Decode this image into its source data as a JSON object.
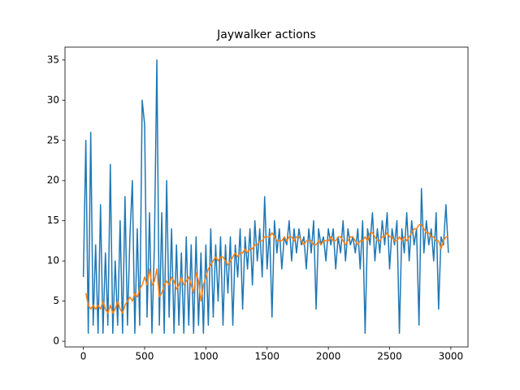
{
  "chart_data": {
    "type": "line",
    "title": "Jaywalker actions",
    "x": [
      0,
      20,
      40,
      60,
      80,
      100,
      120,
      140,
      160,
      180,
      200,
      220,
      240,
      260,
      280,
      300,
      320,
      340,
      360,
      380,
      400,
      420,
      440,
      460,
      480,
      500,
      520,
      540,
      560,
      580,
      600,
      620,
      640,
      660,
      680,
      700,
      720,
      740,
      760,
      780,
      800,
      820,
      840,
      860,
      880,
      900,
      920,
      940,
      960,
      980,
      1000,
      1020,
      1040,
      1060,
      1080,
      1100,
      1120,
      1140,
      1160,
      1180,
      1200,
      1220,
      1240,
      1260,
      1280,
      1300,
      1320,
      1340,
      1360,
      1380,
      1400,
      1420,
      1440,
      1460,
      1480,
      1500,
      1520,
      1540,
      1560,
      1580,
      1600,
      1620,
      1640,
      1660,
      1680,
      1700,
      1720,
      1740,
      1760,
      1780,
      1800,
      1820,
      1840,
      1860,
      1880,
      1900,
      1920,
      1940,
      1960,
      1980,
      2000,
      2020,
      2040,
      2060,
      2080,
      2100,
      2120,
      2140,
      2160,
      2180,
      2200,
      2220,
      2240,
      2260,
      2280,
      2300,
      2320,
      2340,
      2360,
      2380,
      2400,
      2420,
      2440,
      2460,
      2480,
      2500,
      2520,
      2540,
      2560,
      2580,
      2600,
      2620,
      2640,
      2660,
      2680,
      2700,
      2720,
      2740,
      2760,
      2780,
      2800,
      2820,
      2840,
      2860,
      2880,
      2900,
      2920,
      2940,
      2960,
      2980
    ],
    "series": [
      {
        "color": "#1f77b4",
        "values": [
          8,
          25,
          1,
          26,
          2,
          12,
          1,
          17,
          1,
          11,
          2,
          22,
          1,
          10,
          2,
          15,
          1,
          18,
          2,
          13,
          20,
          1,
          14,
          2,
          30,
          27,
          3,
          16,
          1,
          12,
          35,
          2,
          16,
          1,
          20,
          3,
          14,
          1,
          12,
          2,
          11,
          1,
          13,
          2,
          12,
          1,
          13,
          2,
          11,
          1,
          12,
          2,
          14,
          3,
          12,
          5,
          13,
          2,
          12,
          6,
          13,
          2,
          12,
          8,
          14,
          4,
          13,
          9,
          14,
          7,
          15,
          10,
          14,
          8,
          18,
          9,
          14,
          3,
          15,
          11,
          14,
          9,
          13,
          12,
          15,
          10,
          14,
          11,
          14,
          12,
          13,
          9,
          14,
          11,
          15,
          4,
          14,
          12,
          13,
          10,
          14,
          12,
          14,
          9,
          13,
          11,
          15,
          10,
          14,
          12,
          13,
          11,
          14,
          9,
          15,
          1,
          14,
          12,
          16,
          10,
          14,
          11,
          15,
          12,
          16,
          9,
          14,
          12,
          15,
          1,
          14,
          11,
          16,
          10,
          15,
          12,
          14,
          2,
          19,
          11,
          15,
          12,
          14,
          10,
          16,
          4,
          13,
          12,
          17,
          11
        ]
      },
      {
        "color": "#ff7f0e",
        "values": [
          null,
          6,
          4.5,
          4,
          4.5,
          4,
          4.5,
          4,
          5,
          4,
          3.5,
          4.5,
          3.5,
          4,
          5,
          4,
          3.5,
          4.5,
          5,
          5.5,
          5,
          6,
          5.5,
          6.5,
          7,
          8,
          7,
          9,
          7,
          7.5,
          9,
          5.5,
          6,
          7,
          7.5,
          7,
          8,
          7.5,
          6.5,
          7,
          8,
          7,
          7.5,
          8,
          7,
          6,
          8.5,
          7.5,
          5,
          7,
          8,
          9,
          9.5,
          10,
          10.5,
          10,
          10.5,
          10.5,
          10,
          9.5,
          10,
          10.5,
          11,
          10.5,
          11,
          11,
          11.5,
          11,
          11.5,
          11.5,
          12,
          12,
          12.5,
          12.5,
          13,
          13,
          13,
          13.5,
          13,
          12.5,
          12.5,
          12.5,
          13,
          12.5,
          13,
          13,
          12.5,
          13,
          13,
          12.5,
          12,
          12.5,
          12.5,
          12.5,
          12,
          12,
          12.5,
          12,
          12.5,
          12.5,
          12.5,
          13,
          12.5,
          12.5,
          13,
          13,
          12.5,
          12,
          12.5,
          13,
          13,
          12.5,
          12,
          12.5,
          12.5,
          13,
          12.5,
          13.5,
          13.5,
          13,
          12.5,
          12.5,
          13,
          13,
          13.5,
          13,
          13,
          12.5,
          12.5,
          13,
          12.5,
          13,
          12.5,
          13,
          13.5,
          14,
          14,
          14.5,
          14.5,
          14,
          13.5,
          13.5,
          13,
          13,
          12.5,
          12.5,
          11.5,
          12.5,
          13,
          13
        ]
      }
    ],
    "xlim": [
      -150,
      3140
    ],
    "ylim": [
      -0.7,
      36.6
    ],
    "xticks": [
      0,
      500,
      1000,
      1500,
      2000,
      2500,
      3000
    ],
    "yticks": [
      0,
      5,
      10,
      15,
      20,
      25,
      30,
      35
    ]
  }
}
